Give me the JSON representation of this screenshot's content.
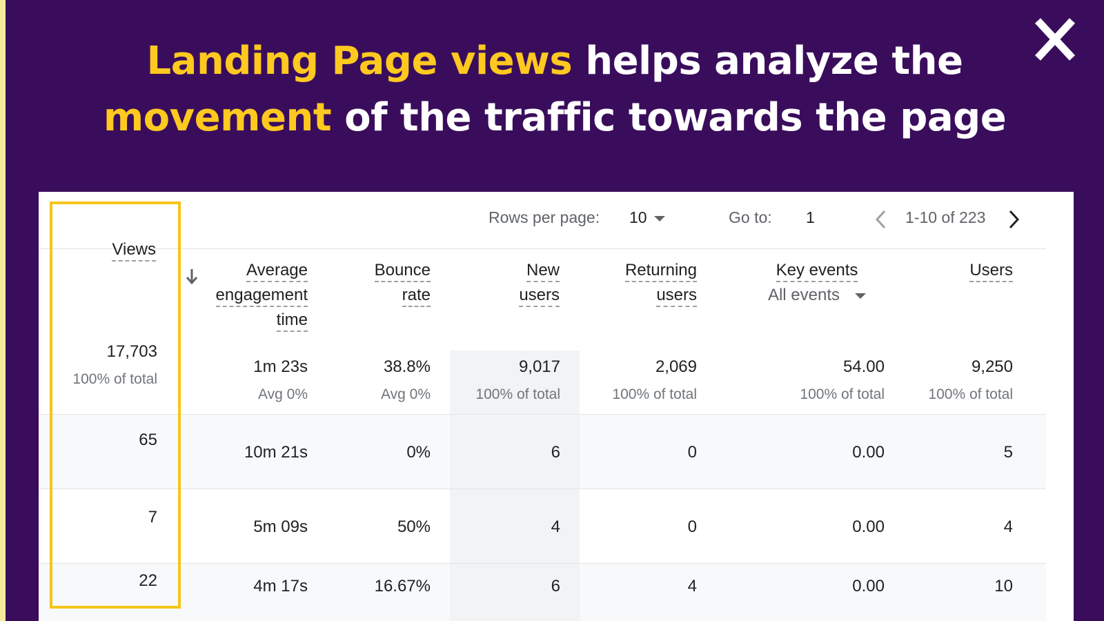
{
  "headline": {
    "line1_highlight": "Landing Page views",
    "line1_rest": " helps analyze the",
    "line2_highlight": "movement",
    "line2_rest": " of the traffic towards the page"
  },
  "icons": {
    "close": "close-icon",
    "sort": "arrow-down-icon",
    "prev": "chevron-left-icon",
    "next": "chevron-right-icon",
    "dropdown": "caret-down-icon"
  },
  "colors": {
    "background": "#3a0d5c",
    "highlight": "#ffc91f",
    "frame": "#f5c518",
    "border": "#f5ec9a"
  },
  "pager": {
    "rows_label": "Rows per page:",
    "rows_value": "10",
    "goto_label": "Go to:",
    "goto_value": "1",
    "range": "1-10 of 223"
  },
  "headers": {
    "views": "Views",
    "avg_1": "Average",
    "avg_2": "engagement",
    "avg_3": "time",
    "bounce_1": "Bounce",
    "bounce_2": "rate",
    "new_1": "New",
    "new_2": "users",
    "ret_1": "Returning",
    "ret_2": "users",
    "key_1": "Key events",
    "key_select": "All events",
    "users": "Users"
  },
  "totals": {
    "views": "17,703",
    "views_sub": "100% of total",
    "avg": "1m 23s",
    "avg_sub": "Avg 0%",
    "bounce": "38.8%",
    "bounce_sub": "Avg 0%",
    "new": "9,017",
    "new_sub": "100% of total",
    "ret": "2,069",
    "ret_sub": "100% of total",
    "key": "54.00",
    "key_sub": "100% of total",
    "users": "9,250",
    "users_sub": "100% of total"
  },
  "rows": [
    {
      "views": "65",
      "avg": "10m 21s",
      "bounce": "0%",
      "new": "6",
      "ret": "0",
      "key": "0.00",
      "users": "5"
    },
    {
      "views": "7",
      "avg": "5m 09s",
      "bounce": "50%",
      "new": "4",
      "ret": "0",
      "key": "0.00",
      "users": "4"
    },
    {
      "views": "22",
      "avg": "4m 17s",
      "bounce": "16.67%",
      "new": "6",
      "ret": "4",
      "key": "0.00",
      "users": "10"
    }
  ]
}
